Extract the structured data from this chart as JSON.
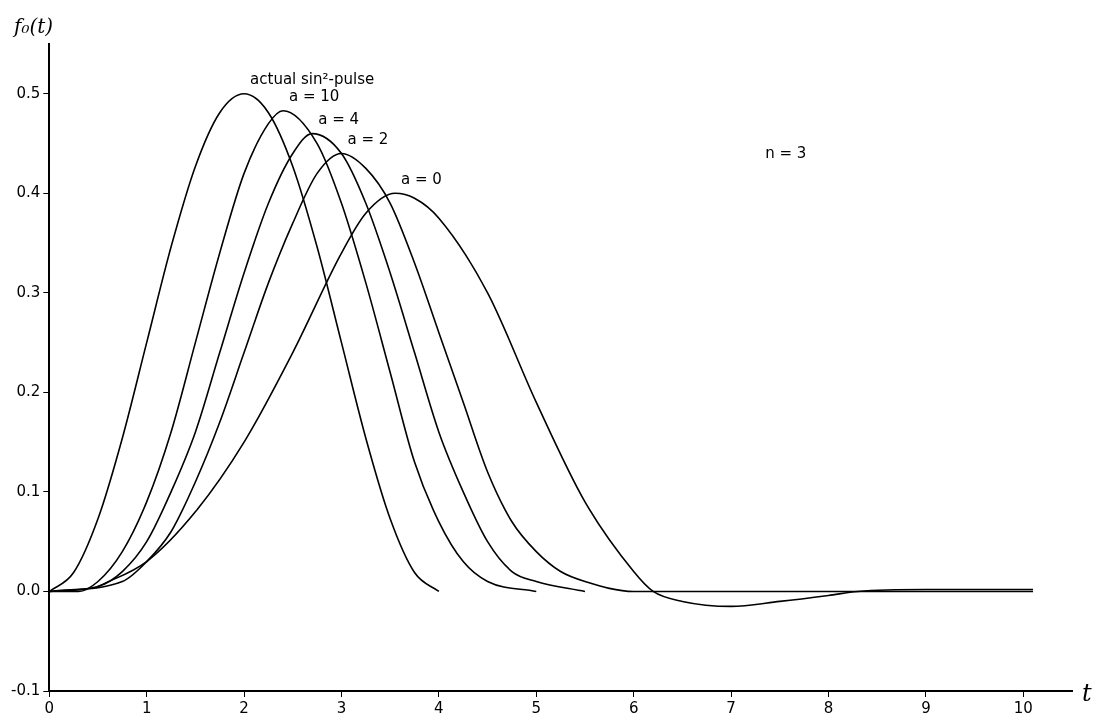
{
  "chart_data": {
    "type": "line",
    "xlabel": "t",
    "ylabel": "f₀(t)",
    "xlim": [
      0,
      10.5
    ],
    "xticks": [
      0,
      1,
      2,
      3,
      4,
      5,
      6,
      7,
      8,
      9,
      10
    ],
    "ylim": [
      -0.1,
      0.55
    ],
    "yticks": [
      {
        "value": -0.1,
        "label": "-0.1"
      },
      {
        "value": 0,
        "label": "0.0"
      },
      0.1,
      0.2,
      0.3,
      0.4,
      0.5
    ],
    "grid": false,
    "legend": false,
    "marker": "none",
    "line_style": "solid",
    "annotations": [
      "n = 3"
    ],
    "series": [
      {
        "name": "actual sin²-pulse",
        "color": "#000000",
        "x": [
          0,
          0.25,
          0.5,
          0.75,
          1,
          1.25,
          1.5,
          1.75,
          2,
          2.25,
          2.5,
          2.75,
          3,
          3.25,
          3.5,
          3.75,
          4
        ],
        "values": [
          0,
          0.019,
          0.073,
          0.154,
          0.25,
          0.346,
          0.427,
          0.481,
          0.5,
          0.481,
          0.427,
          0.346,
          0.25,
          0.154,
          0.073,
          0.019,
          0
        ]
      },
      {
        "name": "a = 10",
        "color": "#000000",
        "x": [
          0,
          0.3,
          0.5,
          0.75,
          1,
          1.25,
          1.5,
          1.75,
          2,
          2.25,
          2.4,
          2.75,
          3,
          3.25,
          3.5,
          3.75,
          4,
          4.25,
          4.5,
          5
        ],
        "values": [
          0,
          0,
          0.01,
          0.04,
          0.09,
          0.16,
          0.25,
          0.34,
          0.42,
          0.47,
          0.483,
          0.45,
          0.39,
          0.31,
          0.22,
          0.13,
          0.07,
          0.03,
          0.01,
          0
        ]
      },
      {
        "name": "a = 4",
        "color": "#000000",
        "x": [
          0,
          0.5,
          0.75,
          1,
          1.25,
          1.5,
          1.75,
          2,
          2.25,
          2.5,
          2.7,
          3,
          3.25,
          3.5,
          3.75,
          4,
          4.25,
          4.5,
          4.75,
          5,
          5.5
        ],
        "values": [
          0,
          0.005,
          0.02,
          0.05,
          0.1,
          0.16,
          0.24,
          0.32,
          0.39,
          0.44,
          0.46,
          0.44,
          0.39,
          0.32,
          0.24,
          0.16,
          0.1,
          0.05,
          0.02,
          0.01,
          0
        ]
      },
      {
        "name": "a = 2",
        "color": "#000000",
        "x": [
          0,
          0.75,
          1,
          1.25,
          1.5,
          1.75,
          2,
          2.25,
          2.5,
          2.75,
          3,
          3.25,
          3.5,
          3.75,
          4,
          4.25,
          4.5,
          4.75,
          5,
          5.25,
          5.5,
          6,
          10.1
        ],
        "values": [
          0,
          0.01,
          0.03,
          0.06,
          0.11,
          0.17,
          0.24,
          0.31,
          0.37,
          0.42,
          0.44,
          0.425,
          0.39,
          0.33,
          0.26,
          0.19,
          0.12,
          0.07,
          0.04,
          0.02,
          0.01,
          0,
          0
        ]
      },
      {
        "name": "a = 0",
        "color": "#000000",
        "x": [
          0.5,
          1,
          1.5,
          2,
          2.5,
          3,
          3.25,
          3.55,
          3.75,
          4,
          4.5,
          5,
          5.5,
          6,
          6.2,
          6.5,
          7,
          7.5,
          8,
          8.3,
          9,
          10.1
        ],
        "values": [
          0.005,
          0.03,
          0.08,
          0.15,
          0.24,
          0.34,
          0.38,
          0.4,
          0.395,
          0.375,
          0.3,
          0.19,
          0.09,
          0.02,
          0,
          -0.01,
          -0.015,
          -0.01,
          -0.004,
          0,
          0.002,
          0.002
        ]
      }
    ]
  }
}
